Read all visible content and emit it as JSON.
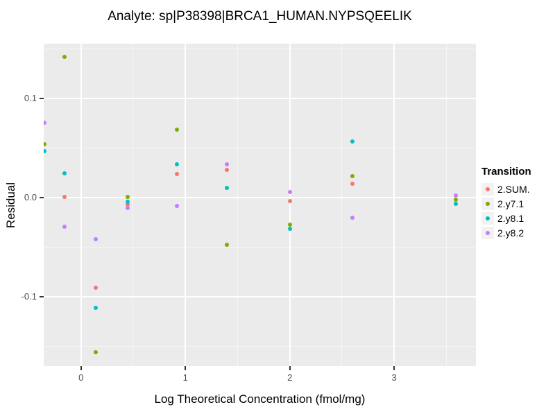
{
  "title": "Analyte: sp|P38398|BRCA1_HUMAN.NYPSQEELIK",
  "chart_data": {
    "type": "scatter",
    "title": "Analyte: sp|P38398|BRCA1_HUMAN.NYPSQEELIK",
    "xlabel": "Log Theoretical Concentration (fmol/mg)",
    "ylabel": "Residual",
    "xlim": [
      -0.357,
      3.783
    ],
    "ylim": [
      -0.1697,
      0.1555
    ],
    "x_major_ticks": [
      0,
      1,
      2,
      3
    ],
    "x_tick_labels": [
      "0",
      "1",
      "2",
      "3"
    ],
    "x_minor_ticks": [
      0.5,
      1.5,
      2.5,
      3.5
    ],
    "y_major_ticks": [
      -0.1,
      0.0,
      0.1
    ],
    "y_tick_labels": [
      "-0.1",
      "0.0",
      "0.1"
    ],
    "y_minor_ticks": [
      -0.15,
      -0.05,
      0.05,
      0.15
    ],
    "grid": true,
    "panel_bg": "#EBEBEB",
    "grid_color": "#FFFFFF",
    "tick_label_color": "#4D4D4D",
    "legend_title": "Transition",
    "legend_position": "right",
    "legend_key_bg": "#F2F2F2",
    "series": [
      {
        "name": "2.SUM.",
        "color": "#F8766D",
        "points": [
          [
            -0.155,
            0.001
          ],
          [
            0.14,
            -0.091
          ],
          [
            0.444,
            -0.007
          ],
          [
            0.92,
            0.024
          ],
          [
            1.395,
            0.028
          ],
          [
            2.0,
            -0.003
          ],
          [
            2.6,
            0.014
          ]
        ]
      },
      {
        "name": "2.y7.1",
        "color": "#7CAE00",
        "points": [
          [
            -0.35,
            0.054
          ],
          [
            -0.155,
            0.142
          ],
          [
            0.14,
            -0.156
          ],
          [
            0.444,
            0.001
          ],
          [
            0.92,
            0.069
          ],
          [
            1.395,
            -0.047
          ],
          [
            2.0,
            -0.027
          ],
          [
            2.6,
            0.022
          ],
          [
            3.593,
            -0.002
          ]
        ]
      },
      {
        "name": "2.y8.1",
        "color": "#00BFC4",
        "points": [
          [
            -0.35,
            0.047
          ],
          [
            -0.155,
            0.025
          ],
          [
            0.14,
            -0.111
          ],
          [
            0.444,
            -0.004
          ],
          [
            0.92,
            0.034
          ],
          [
            1.395,
            0.01
          ],
          [
            2.0,
            -0.031
          ],
          [
            2.6,
            0.057
          ],
          [
            3.593,
            -0.006
          ]
        ]
      },
      {
        "name": "2.y8.2",
        "color": "#C77CFF",
        "points": [
          [
            -0.35,
            0.076
          ],
          [
            -0.155,
            -0.029
          ],
          [
            0.14,
            -0.042
          ],
          [
            0.444,
            -0.01
          ],
          [
            0.92,
            -0.008
          ],
          [
            1.395,
            0.034
          ],
          [
            2.0,
            0.006
          ],
          [
            2.6,
            -0.02
          ],
          [
            3.593,
            0.002
          ]
        ]
      }
    ]
  }
}
